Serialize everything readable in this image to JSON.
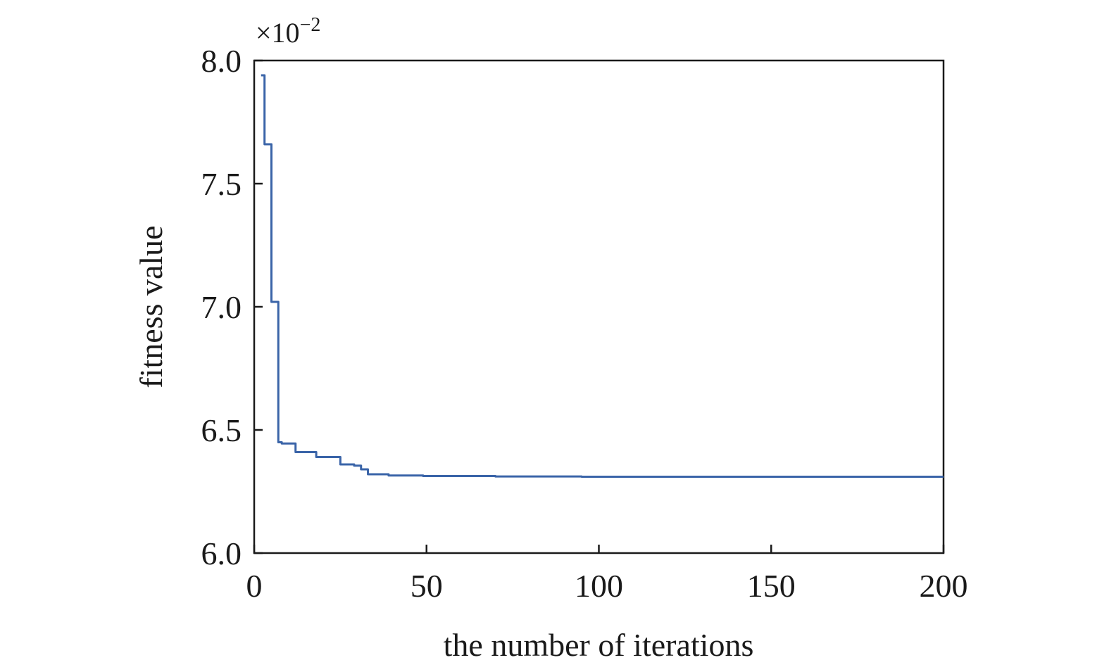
{
  "chart_data": {
    "type": "line",
    "xlabel": "the number of iterations",
    "ylabel": "fitness value",
    "y_multiplier": {
      "prefix": "×10",
      "exponent": "−2"
    },
    "xlim": [
      0,
      200
    ],
    "ylim": [
      6.0,
      8.0
    ],
    "x_ticks": [
      0,
      50,
      100,
      150,
      200
    ],
    "y_ticks": [
      6.0,
      6.5,
      7.0,
      7.5,
      8.0
    ],
    "x_tick_labels": [
      "0",
      "50",
      "100",
      "150",
      "200"
    ],
    "y_tick_labels": [
      "6.0",
      "6.5",
      "7.0",
      "7.5",
      "8.0"
    ],
    "grid": false,
    "series": [
      {
        "color": "#3a64a8",
        "step": true,
        "x": [
          2,
          3,
          4,
          5,
          7,
          8,
          12,
          18,
          25,
          29,
          31,
          33,
          39,
          49,
          70,
          95,
          125,
          200
        ],
        "y": [
          7.94,
          7.94,
          7.66,
          7.66,
          7.02,
          6.45,
          6.445,
          6.41,
          6.39,
          6.36,
          6.355,
          6.34,
          6.32,
          6.315,
          6.313,
          6.311,
          6.31,
          6.31
        ]
      }
    ]
  }
}
